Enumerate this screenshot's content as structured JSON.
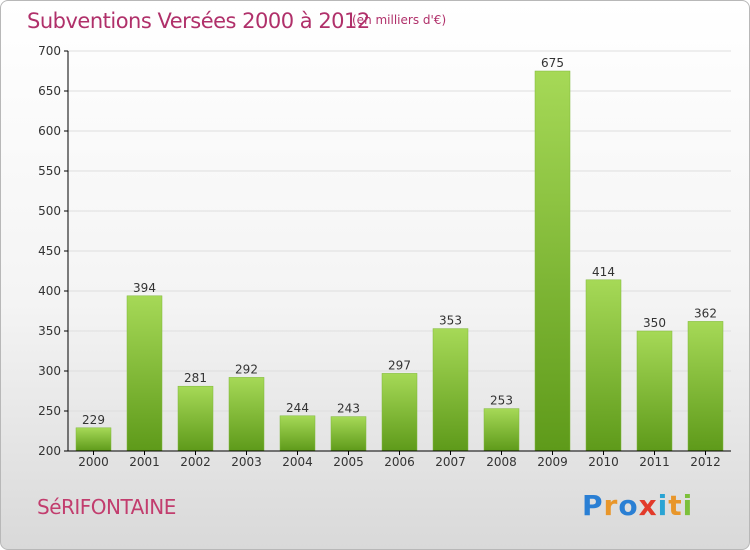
{
  "header": {
    "title": "Subventions Versées 2000 à 2012",
    "subtitle": "(en milliers d'€)"
  },
  "footer": {
    "place": "SéRIFONTAINE",
    "logo": "Proxiti"
  },
  "colors": {
    "title": "#b0306a",
    "bar_light": "#a6d957",
    "bar_dark": "#5e9a1a",
    "grid": "#dedede",
    "axis": "#000000"
  },
  "chart_data": {
    "type": "bar",
    "title": "Subventions Versées 2000 à 2012",
    "subtitle": "(en milliers d'€)",
    "xlabel": "",
    "ylabel": "",
    "categories": [
      "2000",
      "2001",
      "2002",
      "2003",
      "2004",
      "2005",
      "2006",
      "2007",
      "2008",
      "2009",
      "2010",
      "2011",
      "2012"
    ],
    "values": [
      229,
      394,
      281,
      292,
      244,
      243,
      297,
      353,
      253,
      675,
      414,
      350,
      362
    ],
    "ylim": [
      200,
      700
    ],
    "yticks": [
      200,
      250,
      300,
      350,
      400,
      450,
      500,
      550,
      600,
      650,
      700
    ],
    "grid": true,
    "data_labels": true
  }
}
